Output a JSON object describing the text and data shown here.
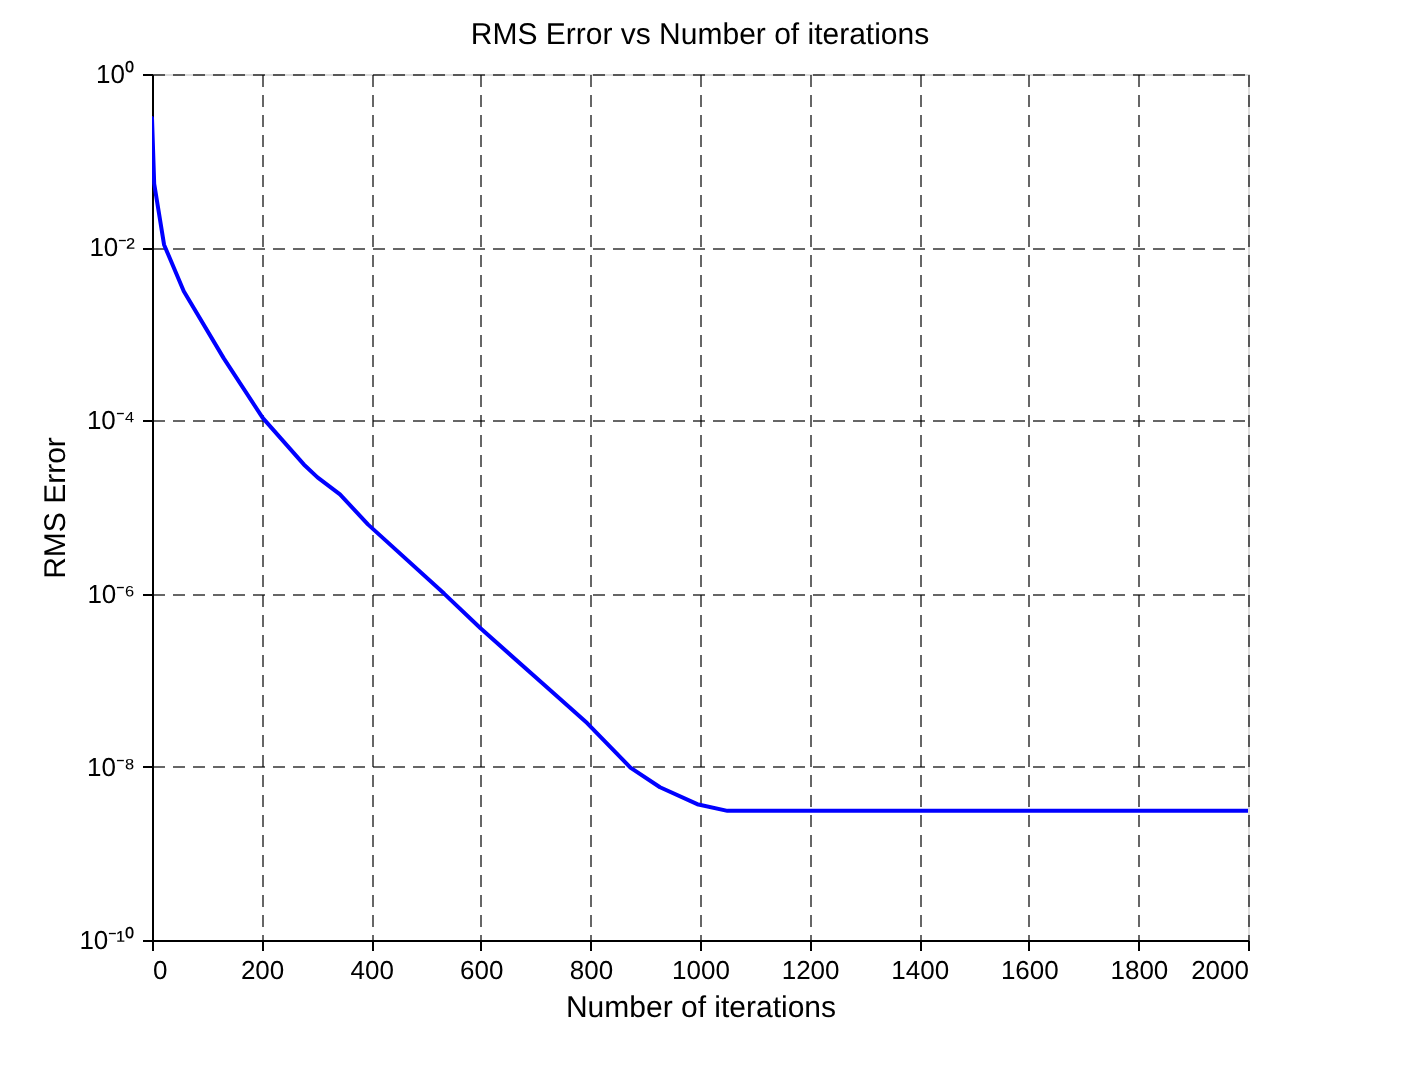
{
  "chart_data": {
    "type": "line",
    "title": "RMS Error vs Number of iterations",
    "xlabel": "Number of iterations",
    "ylabel": "RMS Error",
    "x": [
      0,
      4,
      22,
      58,
      131,
      202,
      277,
      302,
      343,
      394,
      533,
      599,
      715,
      794,
      873,
      927,
      995,
      1050,
      1500,
      2000
    ],
    "series": [
      {
        "color": "#0000ff",
        "values": [
          0.31,
          0.054,
          0.0107,
          0.0031,
          0.00052,
          0.000107,
          3.1e-05,
          2.2e-05,
          1.4e-05,
          6.3e-06,
          1e-06,
          4e-07,
          8.9e-08,
          3.2e-08,
          9.8e-09,
          5.8e-09,
          3.7e-09,
          3.1e-09,
          3.1e-09,
          3.1e-09
        ]
      }
    ],
    "log": "y",
    "xlim": [
      0,
      2000
    ],
    "xticks": [
      0,
      200,
      400,
      600,
      800,
      1000,
      1200,
      1400,
      1600,
      1800,
      2000
    ],
    "ylim": [
      1e-10,
      1
    ],
    "yticks": [
      {
        "value": 1e-10,
        "label": "10⁻¹⁰"
      },
      {
        "value": 1e-08,
        "label": "10⁻⁸"
      },
      {
        "value": 1e-06,
        "label": "10⁻⁶"
      },
      {
        "value": 0.0001,
        "label": "10⁻⁴"
      },
      {
        "value": 0.01,
        "label": "10⁻²"
      },
      {
        "value": 1,
        "label": "10⁰"
      }
    ],
    "grid": true,
    "marker": "none",
    "line_style": "solid",
    "legend": false
  }
}
